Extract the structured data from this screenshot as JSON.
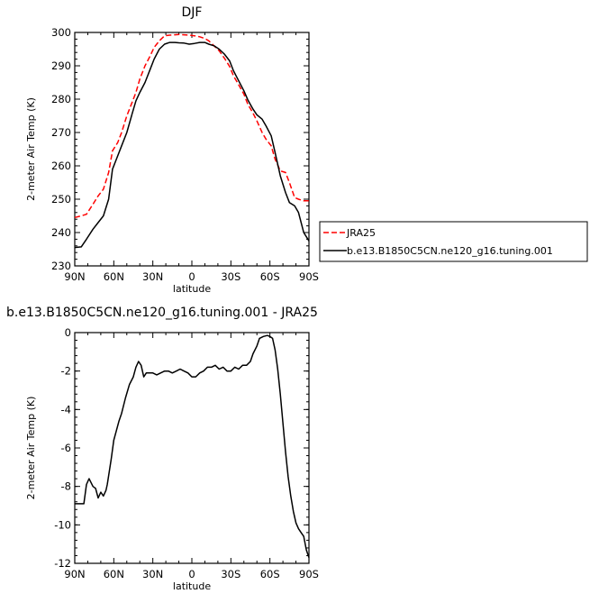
{
  "chart_data": [
    {
      "type": "line",
      "title": "DJF",
      "xlabel": "latitude",
      "ylabel": "2-meter Air Temp (K)",
      "xlim": [
        90,
        -90
      ],
      "ylim": [
        230,
        300
      ],
      "x_ticks": [
        {
          "value": 90,
          "label": "90N"
        },
        {
          "value": 60,
          "label": "60N"
        },
        {
          "value": 30,
          "label": "30N"
        },
        {
          "value": 0,
          "label": "0"
        },
        {
          "value": -30,
          "label": "30S"
        },
        {
          "value": -60,
          "label": "60S"
        },
        {
          "value": -90,
          "label": "90S"
        }
      ],
      "y_ticks": [
        230,
        240,
        250,
        260,
        270,
        280,
        290,
        300
      ],
      "legend": {
        "placement": "right"
      },
      "series": [
        {
          "name": "JRA25",
          "color": "#ff0000",
          "dash": "dashed",
          "x": [
            90,
            85,
            81,
            76,
            72,
            68,
            64,
            61,
            57,
            54,
            50,
            46,
            43,
            40,
            36,
            32,
            29,
            25,
            21,
            17,
            13,
            10,
            6,
            2,
            -2,
            -6,
            -10,
            -13,
            -17,
            -21,
            -25,
            -29,
            -32,
            -36,
            -40,
            -43,
            -47,
            -50,
            -54,
            -57,
            -61,
            -64,
            -68,
            -72,
            -75,
            -79,
            -82,
            -86,
            -90
          ],
          "values": [
            244.5,
            245,
            245.5,
            248.5,
            251,
            253,
            258,
            264.5,
            267,
            270,
            275,
            279,
            282,
            286,
            290,
            293,
            295.5,
            297.5,
            299,
            299.2,
            299.3,
            299.4,
            299.3,
            299.2,
            299,
            298.7,
            298.2,
            297.5,
            296,
            294.5,
            292.3,
            289.8,
            287,
            284.3,
            281.5,
            278.5,
            275.8,
            273.5,
            270,
            268,
            266,
            262,
            258.5,
            258,
            255,
            250.5,
            250,
            249.5,
            249.5
          ]
        },
        {
          "name": "b.e13.B1850C5CN.ne120_g16.tuning.001",
          "color": "#000000",
          "dash": "solid",
          "x": [
            90,
            85,
            81,
            76,
            72,
            68,
            64,
            61,
            57,
            54,
            50,
            46,
            43,
            40,
            36,
            32,
            29,
            25,
            21,
            17,
            13,
            10,
            6,
            2,
            -2,
            -6,
            -10,
            -13,
            -17,
            -21,
            -25,
            -29,
            -32,
            -36,
            -40,
            -43,
            -47,
            -50,
            -54,
            -57,
            -61,
            -64,
            -68,
            -72,
            -75,
            -79,
            -82,
            -86,
            -90
          ],
          "values": [
            235.5,
            235.7,
            238,
            241,
            243,
            245,
            250,
            259,
            263,
            266,
            270,
            275.5,
            279.5,
            282,
            285,
            289,
            292,
            295,
            296.5,
            297,
            297,
            296.9,
            296.8,
            296.5,
            296.7,
            297,
            297,
            296.5,
            296,
            295,
            293.5,
            291.5,
            288.5,
            285.5,
            282.5,
            279.8,
            277,
            275.3,
            274,
            272,
            269,
            264,
            257,
            252,
            249,
            248,
            246,
            240,
            237.5
          ]
        }
      ]
    },
    {
      "type": "line",
      "title": "b.e13.B1850C5CN.ne120_g16.tuning.001 - JRA25",
      "xlabel": "latitude",
      "ylabel": "2-meter Air Temp (K)",
      "xlim": [
        90,
        -90
      ],
      "ylim": [
        -12,
        0
      ],
      "x_ticks": [
        {
          "value": 90,
          "label": "90N"
        },
        {
          "value": 60,
          "label": "60N"
        },
        {
          "value": 30,
          "label": "30N"
        },
        {
          "value": 0,
          "label": "0"
        },
        {
          "value": -30,
          "label": "30S"
        },
        {
          "value": -60,
          "label": "60S"
        },
        {
          "value": -90,
          "label": "90S"
        }
      ],
      "y_ticks": [
        -12,
        -10,
        -8,
        -6,
        -4,
        -2,
        0
      ],
      "series": [
        {
          "color": "#000000",
          "dash": "solid",
          "x": [
            90,
            86,
            83,
            81,
            79,
            76,
            74,
            72,
            70,
            68,
            66,
            65,
            62,
            60,
            58,
            56,
            54,
            51,
            48,
            45,
            43,
            41,
            39,
            37,
            35,
            33,
            30,
            27,
            24,
            21,
            18,
            15,
            12,
            9,
            6,
            3,
            0,
            -3,
            -6,
            -9,
            -12,
            -15,
            -18,
            -21,
            -24,
            -27,
            -30,
            -33,
            -36,
            -39,
            -42,
            -45,
            -47,
            -50,
            -52,
            -55,
            -58,
            -60,
            -62,
            -64,
            -66,
            -68,
            -70,
            -72,
            -74,
            -76,
            -78,
            -80,
            -82,
            -84,
            -86,
            -88,
            -90
          ],
          "values": [
            -8.9,
            -8.9,
            -8.9,
            -7.9,
            -7.6,
            -8.0,
            -8.1,
            -8.6,
            -8.3,
            -8.5,
            -8.2,
            -7.9,
            -6.6,
            -5.6,
            -5.1,
            -4.6,
            -4.2,
            -3.4,
            -2.7,
            -2.3,
            -1.8,
            -1.5,
            -1.7,
            -2.3,
            -2.1,
            -2.1,
            -2.1,
            -2.2,
            -2.1,
            -2.0,
            -2.0,
            -2.1,
            -2.0,
            -1.9,
            -2.0,
            -2.1,
            -2.3,
            -2.3,
            -2.1,
            -2.0,
            -1.8,
            -1.8,
            -1.7,
            -1.9,
            -1.8,
            -2.0,
            -2.0,
            -1.8,
            -1.9,
            -1.7,
            -1.7,
            -1.5,
            -1.1,
            -0.7,
            -0.3,
            -0.2,
            -0.15,
            -0.2,
            -0.3,
            -0.9,
            -1.9,
            -3.2,
            -4.7,
            -6.2,
            -7.5,
            -8.5,
            -9.3,
            -9.9,
            -10.2,
            -10.4,
            -10.6,
            -11.3,
            -11.7
          ]
        }
      ]
    }
  ]
}
